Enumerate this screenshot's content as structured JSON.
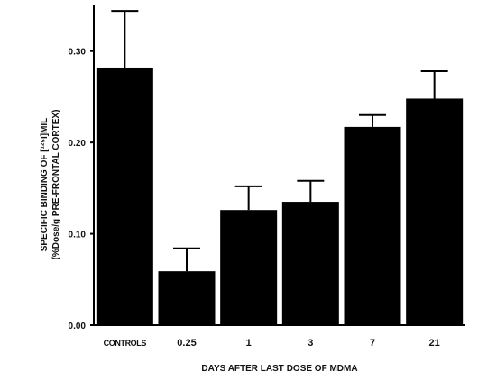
{
  "chart_data": {
    "type": "bar",
    "title": "",
    "categories": [
      "CONTROLS",
      "0.25",
      "1",
      "3",
      "7",
      "21"
    ],
    "values": [
      0.282,
      0.059,
      0.126,
      0.135,
      0.217,
      0.248
    ],
    "errors": [
      0.062,
      0.025,
      0.026,
      0.023,
      0.013,
      0.03
    ],
    "xlabel": "DAYS AFTER LAST DOSE OF MDMA",
    "ylabel_line1": "SPECIFIC BINDING OF [¹²⁵I]MIL",
    "ylabel_line2": "(%Dose/g PRE-FRONTAL CORTEX)",
    "ylim": [
      0,
      0.35
    ],
    "yticks": [
      0.0,
      0.1,
      0.2,
      0.3
    ],
    "ytick_labels": [
      "0.00",
      "0.10",
      "0.20",
      "0.30"
    ],
    "grid": false,
    "bar_color": "#000000"
  }
}
